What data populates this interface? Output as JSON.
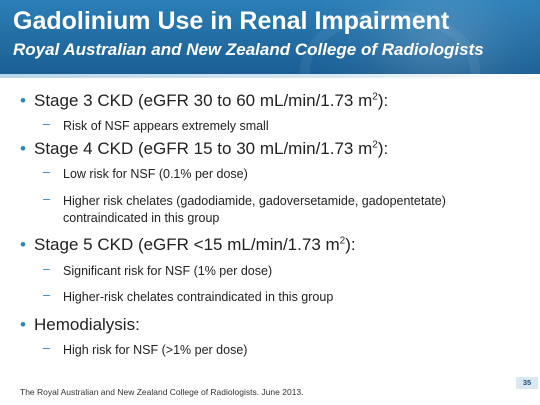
{
  "slide": {
    "title": "Gadolinium Use in Renal Impairment",
    "subtitle": "Royal Australian and New Zealand College of Radiologists",
    "bullet_glyph": "•",
    "dash_glyph": "–",
    "items": [
      {
        "label": "Stage 3 CKD (eGFR 30 to 60 mL/min/1.73 m",
        "sup": "2",
        "suffix": "):",
        "subs": [
          "Risk of NSF appears extremely small"
        ]
      },
      {
        "label": "Stage 4 CKD (eGFR 15 to 30 mL/min/1.73 m",
        "sup": "2",
        "suffix": "):",
        "subs": [
          "Low risk for NSF (0.1% per dose)",
          "Higher risk chelates (gadodiamide, gadoversetamide, gadopentetate)",
          "contraindicated in this group"
        ]
      },
      {
        "label": "Stage 5 CKD (eGFR <15 mL/min/1.73 m",
        "sup": "2",
        "suffix": "):",
        "subs": [
          "Significant risk for NSF (1% per dose)",
          "Higher-risk chelates contraindicated in this group"
        ]
      },
      {
        "label": "Hemodialysis:",
        "subs": [
          "High risk for NSF (>1% per dose)"
        ]
      }
    ],
    "footer": "The Royal Australian and New Zealand College of Radiologists. June 2013.",
    "page_number": "35"
  },
  "colors": {
    "header_blue": "#2470a7",
    "bullet_blue": "#2f86c4",
    "text": "#222222"
  }
}
